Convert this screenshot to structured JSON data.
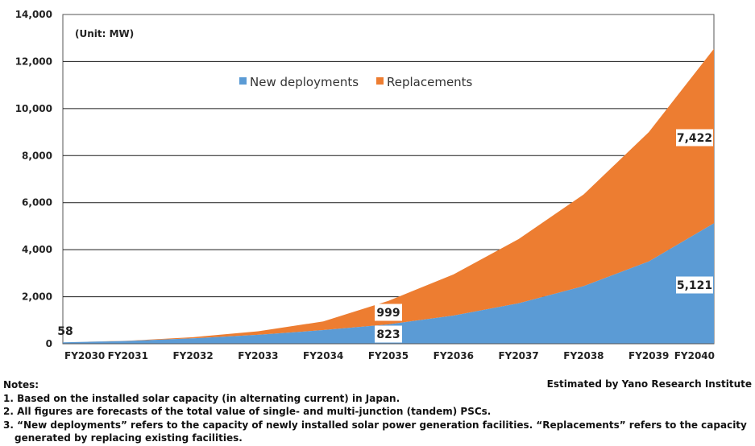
{
  "chart_data": {
    "type": "area",
    "stacked": true,
    "unit_label": "(Unit: MW)",
    "categories": [
      "FY2030",
      "FY2031",
      "FY2032",
      "FY2033",
      "FY2034",
      "FY2035",
      "FY2036",
      "FY2037",
      "FY2038",
      "FY2039",
      "FY2040"
    ],
    "series": [
      {
        "name": "New deployments",
        "color": "#5b9bd5",
        "values": [
          58,
          120,
          230,
          380,
          580,
          823,
          1200,
          1720,
          2450,
          3500,
          5121
        ]
      },
      {
        "name": "Replacements",
        "color": "#ed7d31",
        "values": [
          0,
          10,
          50,
          150,
          370,
          999,
          1750,
          2730,
          3900,
          5500,
          7422
        ]
      }
    ],
    "ylim": [
      0,
      14000
    ],
    "yticks": [
      "0",
      "2,000",
      "4,000",
      "6,000",
      "8,000",
      "10,000",
      "12,000",
      "14,000"
    ],
    "ytick_values": [
      0,
      2000,
      4000,
      6000,
      8000,
      10000,
      12000,
      14000
    ],
    "grid": true,
    "legend_position": "top-center",
    "data_labels": [
      {
        "text": "58",
        "series": 0,
        "index": 0
      },
      {
        "text": "823",
        "series": 0,
        "index": 5
      },
      {
        "text": "999",
        "series": 1,
        "index": 5
      },
      {
        "text": "5,121",
        "series": 0,
        "index": 10
      },
      {
        "text": "7,422",
        "series": 1,
        "index": 10
      }
    ]
  },
  "notes": {
    "heading": "Notes:",
    "items": [
      "1. Based on the installed solar capacity (in alternating current) in Japan.",
      "2. All figures are forecasts of the total value of single- and multi-junction (tandem) PSCs.",
      "3. “New deployments” refers to the capacity of newly installed solar power generation facilities. “Replacements” refers to the capacity",
      "generated by replacing existing facilities."
    ]
  },
  "credit": "Estimated by Yano Research Institute"
}
